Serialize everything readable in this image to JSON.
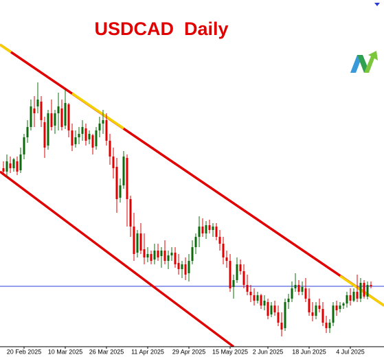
{
  "chart_data": {
    "type": "candlestick",
    "title": "USDCAD  Daily",
    "categories": [
      null,
      null,
      null,
      null,
      null,
      null,
      "20 Feb 2025",
      null,
      null,
      null,
      null,
      null,
      null,
      null,
      null,
      null,
      null,
      null,
      "10 Mar 2025",
      null,
      null,
      null,
      null,
      null,
      null,
      null,
      null,
      null,
      null,
      null,
      "26 Mar 2025",
      null,
      null,
      null,
      null,
      null,
      null,
      null,
      null,
      null,
      null,
      null,
      "11 Apr 2025",
      null,
      null,
      null,
      null,
      null,
      null,
      null,
      null,
      null,
      null,
      null,
      "29 Apr 2025",
      null,
      null,
      null,
      null,
      null,
      null,
      null,
      null,
      null,
      null,
      null,
      "15 May 2025",
      null,
      null,
      null,
      null,
      null,
      null,
      null,
      null,
      null,
      null,
      "2 Jun 2025",
      null,
      null,
      null,
      null,
      null,
      null,
      null,
      null,
      null,
      null,
      null,
      "18 Jun 2025",
      null,
      null,
      null,
      null,
      null,
      null,
      null,
      null,
      null,
      null,
      null,
      "4 Jul 2025",
      null,
      null,
      null,
      null,
      null,
      null
    ],
    "open": [
      1.411,
      1.41,
      1.4124,
      1.411,
      1.413,
      1.4104,
      1.415,
      1.42,
      1.423,
      1.4284,
      1.429,
      1.4304,
      1.4244,
      1.4176,
      1.427,
      1.4234,
      1.427,
      1.4284,
      1.4234,
      1.4296,
      1.422,
      1.418,
      1.42,
      1.421,
      1.4226,
      1.4194,
      1.4206,
      1.4174,
      1.422,
      1.424,
      1.425,
      1.419,
      1.4144,
      1.4114,
      1.4024,
      1.406,
      1.414,
      1.402,
      1.394,
      1.3864,
      1.392,
      1.3874,
      1.385,
      1.386,
      1.3844,
      1.387,
      1.3854,
      1.387,
      1.384,
      1.3856,
      1.3864,
      1.3834,
      1.3816,
      1.383,
      1.3804,
      1.384,
      1.388,
      1.391,
      1.394,
      1.392,
      1.3944,
      1.393,
      1.394,
      1.391,
      1.389,
      1.385,
      1.384,
      1.3764,
      1.3784,
      1.383,
      1.381,
      1.377,
      1.375,
      1.374,
      1.3724,
      1.374,
      1.371,
      1.372,
      1.3684,
      1.371,
      1.369,
      1.366,
      1.3644,
      1.372,
      1.373,
      1.376,
      1.377,
      1.375,
      1.376,
      1.373,
      1.369,
      1.368,
      1.371,
      1.37,
      1.366,
      1.3644,
      1.366,
      1.371,
      1.37,
      1.371,
      1.3716,
      1.374,
      1.3724,
      1.375,
      1.373,
      1.3776,
      1.3736,
      1.377
    ],
    "high": [
      1.413,
      1.415,
      1.4144,
      1.414,
      1.4144,
      1.417,
      1.421,
      1.425,
      1.431,
      1.432,
      1.436,
      1.432,
      1.426,
      1.428,
      1.431,
      1.428,
      1.433,
      1.431,
      1.434,
      1.43,
      1.424,
      1.422,
      1.423,
      1.425,
      1.424,
      1.422,
      1.421,
      1.423,
      1.426,
      1.428,
      1.427,
      1.421,
      1.417,
      1.414,
      1.408,
      1.416,
      1.415,
      1.403,
      1.398,
      1.393,
      1.395,
      1.392,
      1.388,
      1.387,
      1.389,
      1.389,
      1.388,
      1.39,
      1.387,
      1.388,
      1.388,
      1.386,
      1.384,
      1.385,
      1.386,
      1.39,
      1.392,
      1.397,
      1.3964,
      1.3956,
      1.396,
      1.395,
      1.395,
      1.393,
      1.391,
      1.387,
      1.386,
      1.38,
      1.385,
      1.3844,
      1.383,
      1.38,
      1.377,
      1.376,
      1.375,
      1.3744,
      1.374,
      1.373,
      1.372,
      1.3724,
      1.371,
      1.369,
      1.373,
      1.3744,
      1.378,
      1.3804,
      1.3784,
      1.378,
      1.379,
      1.376,
      1.372,
      1.372,
      1.373,
      1.372,
      1.368,
      1.367,
      1.372,
      1.3724,
      1.372,
      1.372,
      1.375,
      1.376,
      1.376,
      1.38,
      1.379,
      1.3784,
      1.378,
      1.378
    ],
    "low": [
      1.409,
      1.4084,
      1.4096,
      1.41,
      1.409,
      1.4096,
      1.4136,
      1.4184,
      1.422,
      1.423,
      1.427,
      1.423,
      1.414,
      1.4164,
      1.422,
      1.421,
      1.422,
      1.422,
      1.4224,
      1.42,
      1.416,
      1.417,
      1.418,
      1.419,
      1.4176,
      1.418,
      1.415,
      1.4164,
      1.42,
      1.421,
      1.4176,
      1.412,
      1.408,
      1.398,
      1.401,
      1.405,
      1.394,
      1.391,
      1.384,
      1.385,
      1.386,
      1.383,
      1.3836,
      1.383,
      1.383,
      1.384,
      1.382,
      1.383,
      1.3816,
      1.384,
      1.382,
      1.38,
      1.379,
      1.3784,
      1.378,
      1.383,
      1.386,
      1.388,
      1.391,
      1.3904,
      1.392,
      1.391,
      1.39,
      1.387,
      1.383,
      1.382,
      1.375,
      1.373,
      1.3776,
      1.38,
      1.376,
      1.374,
      1.372,
      1.371,
      1.3716,
      1.37,
      1.3696,
      1.367,
      1.3676,
      1.368,
      1.365,
      1.362,
      1.3636,
      1.37,
      1.372,
      1.375,
      1.374,
      1.374,
      1.372,
      1.368,
      1.3664,
      1.367,
      1.369,
      1.365,
      1.363,
      1.363,
      1.365,
      1.368,
      1.369,
      1.37,
      1.3704,
      1.371,
      1.372,
      1.372,
      1.372,
      1.373,
      1.3728,
      1.376
    ],
    "close": [
      1.41,
      1.413,
      1.411,
      1.4136,
      1.41,
      1.415,
      1.42,
      1.423,
      1.429,
      1.427,
      1.431,
      1.425,
      1.417,
      1.427,
      1.423,
      1.427,
      1.429,
      1.423,
      1.43,
      1.422,
      1.4176,
      1.42,
      1.421,
      1.423,
      1.419,
      1.421,
      1.417,
      1.422,
      1.424,
      1.425,
      1.419,
      1.4144,
      1.411,
      1.402,
      1.406,
      1.4144,
      1.402,
      1.394,
      1.386,
      1.392,
      1.387,
      1.385,
      1.386,
      1.384,
      1.387,
      1.385,
      1.387,
      1.384,
      1.3856,
      1.3864,
      1.383,
      1.3816,
      1.383,
      1.38,
      1.384,
      1.388,
      1.391,
      1.394,
      1.392,
      1.3944,
      1.393,
      1.394,
      1.391,
      1.389,
      1.385,
      1.384,
      1.376,
      1.3784,
      1.383,
      1.381,
      1.377,
      1.375,
      1.374,
      1.3724,
      1.374,
      1.371,
      1.3724,
      1.368,
      1.371,
      1.369,
      1.366,
      1.364,
      1.372,
      1.373,
      1.376,
      1.377,
      1.375,
      1.3764,
      1.373,
      1.369,
      1.368,
      1.371,
      1.37,
      1.366,
      1.3644,
      1.366,
      1.371,
      1.3696,
      1.371,
      1.3716,
      1.374,
      1.3724,
      1.375,
      1.373,
      1.3776,
      1.3736,
      1.377,
      1.3766
    ],
    "up_color": "#0d6b0d",
    "down_color": "#e00000",
    "ylim": [
      1.359,
      1.46
    ]
  }
}
